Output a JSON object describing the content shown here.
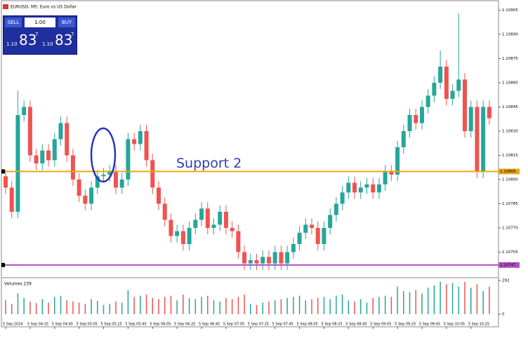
{
  "chart_data": {
    "type": "candlestick",
    "title": "EURUSD, M5: Euro vs US Dollar",
    "categories": [
      "5 Sep 2024",
      null,
      null,
      null,
      "5 Sep 04:25",
      null,
      null,
      null,
      "5 Sep 04:45",
      null,
      null,
      null,
      "5 Sep 05:05",
      null,
      null,
      null,
      "5 Sep 05:25",
      null,
      null,
      null,
      "5 Sep 05:45",
      null,
      null,
      null,
      "5 Sep 06:05",
      null,
      null,
      null,
      "5 Sep 06:25",
      null,
      null,
      null,
      "5 Sep 06:45",
      null,
      null,
      null,
      "5 Sep 07:05",
      null,
      null,
      null,
      "5 Sep 07:25",
      null,
      null,
      null,
      "5 Sep 07:45",
      null,
      null,
      null,
      "5 Sep 08:05",
      null,
      null,
      null,
      "5 Sep 08:25",
      null,
      null,
      null,
      "5 Sep 08:45",
      null,
      null,
      null,
      "5 Sep 09:05",
      null,
      null,
      null,
      "5 Sep 09:25",
      null,
      null,
      null,
      "5 Sep 09:45",
      null,
      null,
      null,
      "5 Sep 10:05",
      null,
      null,
      null,
      "5 Sep 10:25",
      null,
      null,
      null
    ],
    "open": [
      1.10802,
      1.10795,
      1.1078,
      1.1084,
      1.10845,
      1.10815,
      1.1081,
      1.10818,
      1.10812,
      1.10825,
      1.10835,
      1.10815,
      1.108,
      1.1079,
      1.10785,
      1.10795,
      1.10802,
      1.10803,
      1.10805,
      1.10795,
      1.108,
      1.10825,
      1.10822,
      1.1083,
      1.10812,
      1.10795,
      1.10785,
      1.10775,
      1.10765,
      1.10768,
      1.1076,
      1.1077,
      1.10775,
      1.10782,
      1.1077,
      1.10772,
      1.1078,
      1.1077,
      1.10768,
      1.10755,
      1.10748,
      1.1075,
      1.10748,
      1.10752,
      1.10748,
      1.10755,
      1.10748,
      1.10755,
      1.1076,
      1.10767,
      1.10772,
      1.1077,
      1.1076,
      1.1077,
      1.10778,
      1.10785,
      1.10792,
      1.10798,
      1.10792,
      1.10795,
      1.10797,
      1.10792,
      1.10797,
      1.10805,
      1.10803,
      1.1082,
      1.1083,
      1.1084,
      1.10835,
      1.10845,
      1.10852,
      1.1086,
      1.1087,
      1.1085,
      1.10855,
      1.10862,
      1.1083,
      1.10845,
      1.10805,
      1.10845
    ],
    "high": [
      1.10806,
      1.10799,
      1.10855,
      1.10849,
      1.10849,
      1.10819,
      1.10822,
      1.10822,
      1.10829,
      1.10839,
      1.10839,
      1.10819,
      1.10804,
      1.10794,
      1.10799,
      1.10806,
      1.10807,
      1.10809,
      1.10809,
      1.10804,
      1.10829,
      1.10829,
      1.10834,
      1.10834,
      1.10816,
      1.10799,
      1.10789,
      1.10779,
      1.10772,
      1.10772,
      1.10774,
      1.10779,
      1.10786,
      1.10786,
      1.10776,
      1.10784,
      1.10784,
      1.10774,
      1.10772,
      1.10759,
      1.10754,
      1.10754,
      1.10756,
      1.10756,
      1.10759,
      1.10759,
      1.10759,
      1.10764,
      1.10771,
      1.10776,
      1.10776,
      1.10774,
      1.10774,
      1.10782,
      1.10789,
      1.10796,
      1.10802,
      1.10802,
      1.10799,
      1.10801,
      1.10801,
      1.10801,
      1.10809,
      1.10809,
      1.10824,
      1.10834,
      1.10844,
      1.10844,
      1.10849,
      1.10856,
      1.10864,
      1.1088,
      1.10874,
      1.10859,
      1.10903,
      1.10866,
      1.10849,
      1.10849,
      1.10849,
      1.10849
    ],
    "low": [
      1.10791,
      1.10776,
      1.10776,
      1.10836,
      1.10811,
      1.10806,
      1.10806,
      1.10808,
      1.10808,
      1.10821,
      1.10811,
      1.10796,
      1.10786,
      1.10781,
      1.10781,
      1.10791,
      1.10798,
      1.10799,
      1.10791,
      1.10791,
      1.10796,
      1.10818,
      1.10818,
      1.10808,
      1.10791,
      1.10781,
      1.10771,
      1.10761,
      1.10761,
      1.10756,
      1.10756,
      1.10766,
      1.10771,
      1.10766,
      1.10766,
      1.10768,
      1.10766,
      1.10764,
      1.10751,
      1.10744,
      1.10744,
      1.10744,
      1.10744,
      1.10744,
      1.10744,
      1.10744,
      1.10744,
      1.10751,
      1.10756,
      1.10763,
      1.10766,
      1.10756,
      1.10756,
      1.10766,
      1.10774,
      1.10781,
      1.10788,
      1.10788,
      1.10788,
      1.10791,
      1.10788,
      1.10788,
      1.10793,
      1.10799,
      1.10799,
      1.10816,
      1.10826,
      1.10831,
      1.10831,
      1.10841,
      1.10848,
      1.10856,
      1.10846,
      1.10846,
      1.10851,
      1.10826,
      1.10826,
      1.10801,
      1.10801,
      1.10834
    ],
    "close": [
      1.10795,
      1.1078,
      1.1084,
      1.10845,
      1.10815,
      1.1081,
      1.10818,
      1.10812,
      1.10825,
      1.10835,
      1.10815,
      1.108,
      1.1079,
      1.10785,
      1.10795,
      1.10802,
      1.10803,
      1.10805,
      1.10795,
      1.108,
      1.10825,
      1.10822,
      1.1083,
      1.10812,
      1.10795,
      1.10785,
      1.10775,
      1.10765,
      1.10768,
      1.1076,
      1.1077,
      1.10775,
      1.10782,
      1.1077,
      1.10772,
      1.1078,
      1.1077,
      1.10768,
      1.10755,
      1.10748,
      1.1075,
      1.10748,
      1.10752,
      1.10748,
      1.10755,
      1.10748,
      1.10755,
      1.1076,
      1.10767,
      1.10772,
      1.1077,
      1.1076,
      1.1077,
      1.10778,
      1.10785,
      1.10792,
      1.10798,
      1.10792,
      1.10795,
      1.10797,
      1.10792,
      1.10797,
      1.10805,
      1.10803,
      1.1082,
      1.1083,
      1.1084,
      1.10835,
      1.10845,
      1.10852,
      1.1086,
      1.1087,
      1.1085,
      1.10855,
      1.10862,
      1.1083,
      1.10845,
      1.10805,
      1.10845,
      1.10838
    ],
    "volume": [
      120,
      90,
      180,
      140,
      110,
      95,
      130,
      100,
      150,
      160,
      120,
      110,
      100,
      90,
      130,
      115,
      80,
      90,
      110,
      100,
      210,
      150,
      160,
      170,
      140,
      130,
      150,
      160,
      120,
      170,
      140,
      130,
      150,
      160,
      120,
      110,
      140,
      130,
      150,
      170,
      90,
      80,
      100,
      110,
      120,
      130,
      140,
      150,
      160,
      120,
      130,
      140,
      150,
      130,
      160,
      170,
      120,
      110,
      130,
      100,
      140,
      150,
      160,
      150,
      240,
      200,
      190,
      210,
      180,
      230,
      250,
      280,
      260,
      270,
      240,
      280,
      230,
      260,
      200,
      239
    ],
    "up_color": "#26a69a",
    "down_color": "#ef5350",
    "ylim": [
      1.1074,
      1.1091
    ],
    "yticks": [
      1.10905,
      {
        "value": 1.1089,
        "label": "1.10890"
      },
      1.10875,
      {
        "value": 1.1086,
        "label": "1.10860"
      },
      1.10845,
      {
        "value": 1.1083,
        "label": "1.10830"
      },
      1.10815,
      {
        "value": 1.108,
        "label": "1.10800"
      },
      1.10785,
      {
        "value": 1.1077,
        "label": "1.10770"
      },
      1.10755
    ],
    "volume_label": "Volumes 239",
    "vlim": [
      0,
      292
    ],
    "vticks": [
      0,
      292
    ],
    "price_lines": [
      {
        "value": 1.10805,
        "label": "1.10805",
        "color": "#e6a817",
        "annotation": "Support 2"
      },
      {
        "value": 1.10747,
        "label": "1.10747",
        "color": "#b24fc4"
      }
    ]
  },
  "trade_panel": {
    "sell": "SELL",
    "buy": "BUY",
    "lot": "1.00",
    "bid": {
      "prefix": "1.10",
      "big": "83",
      "small": "7"
    },
    "ask": {
      "prefix": "1.10",
      "big": "83",
      "small": "7"
    }
  }
}
